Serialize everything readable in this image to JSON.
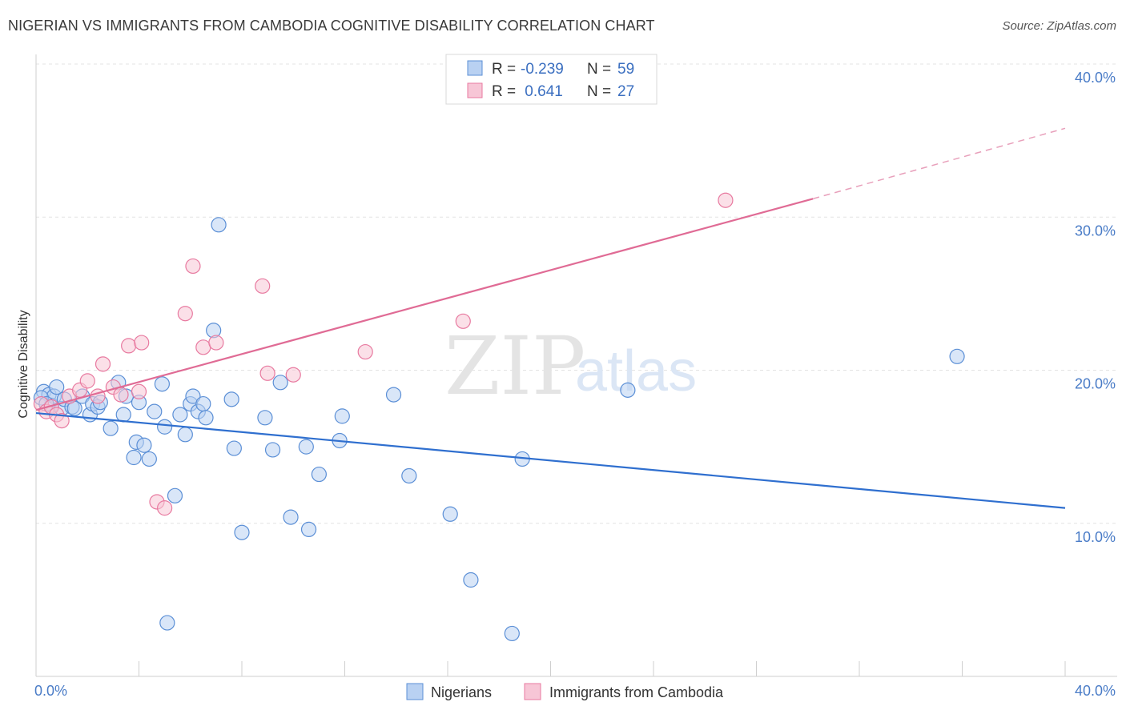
{
  "title": "NIGERIAN VS IMMIGRANTS FROM CAMBODIA COGNITIVE DISABILITY CORRELATION CHART",
  "source": "Source: ZipAtlas.com",
  "watermark": {
    "zip": "ZIP",
    "atlas": "atlas"
  },
  "colors": {
    "blue": "#5b8fd6",
    "blue_fill": "#b9d1f2",
    "blue_line": "#2f6fcf",
    "pink": "#e87aa0",
    "pink_fill": "#f7c6d6",
    "pink_line": "#e06b95"
  },
  "legend": {
    "rows": [
      {
        "r_label": "R =",
        "r_value": "-0.239",
        "n_label": "N =",
        "n_value": "59"
      },
      {
        "r_label": "R =",
        "r_value": " 0.641",
        "n_label": "N =",
        "n_value": "27"
      }
    ]
  },
  "bottom_legend": [
    "Nigerians",
    "Immigrants from Cambodia"
  ],
  "chart_data": {
    "type": "scatter",
    "title": "NIGERIAN VS IMMIGRANTS FROM CAMBODIA COGNITIVE DISABILITY CORRELATION CHART",
    "xlabel": "",
    "ylabel": "Cognitive Disability",
    "xlim": [
      0,
      40
    ],
    "ylim": [
      0,
      40
    ],
    "x_tick_labels": [
      "0.0%",
      "40.0%"
    ],
    "y_tick_labels": [
      "10.0%",
      "20.0%",
      "30.0%",
      "40.0%"
    ],
    "y_ticks": [
      10,
      20,
      30,
      40
    ],
    "grid": true,
    "legend_position": "top-center",
    "series": [
      {
        "name": "Nigerians",
        "r": -0.239,
        "n": 59,
        "trend": {
          "x0": 0,
          "y0": 17.2,
          "x1": 40,
          "y1": 11.0,
          "dashed_from": null
        },
        "points": [
          [
            0.3,
            18.6
          ],
          [
            0.5,
            18.4
          ],
          [
            0.6,
            17.7
          ],
          [
            0.7,
            18.3
          ],
          [
            0.8,
            18.9
          ],
          [
            1.0,
            17.5
          ],
          [
            1.1,
            18.1
          ],
          [
            1.4,
            17.6
          ],
          [
            1.5,
            17.5
          ],
          [
            1.8,
            18.3
          ],
          [
            2.1,
            17.1
          ],
          [
            2.2,
            17.8
          ],
          [
            2.4,
            17.6
          ],
          [
            2.5,
            17.9
          ],
          [
            2.9,
            16.2
          ],
          [
            3.2,
            19.2
          ],
          [
            3.4,
            17.1
          ],
          [
            3.5,
            18.3
          ],
          [
            3.8,
            14.3
          ],
          [
            3.9,
            15.3
          ],
          [
            4.0,
            17.9
          ],
          [
            4.2,
            15.1
          ],
          [
            4.4,
            14.2
          ],
          [
            4.6,
            17.3
          ],
          [
            4.9,
            19.1
          ],
          [
            5.0,
            16.3
          ],
          [
            5.1,
            3.5
          ],
          [
            5.4,
            11.8
          ],
          [
            5.6,
            17.1
          ],
          [
            5.8,
            15.8
          ],
          [
            6.0,
            17.8
          ],
          [
            6.1,
            18.3
          ],
          [
            6.3,
            17.3
          ],
          [
            6.5,
            17.8
          ],
          [
            6.6,
            16.9
          ],
          [
            6.9,
            22.6
          ],
          [
            7.1,
            29.5
          ],
          [
            7.6,
            18.1
          ],
          [
            7.7,
            14.9
          ],
          [
            8.0,
            9.4
          ],
          [
            8.9,
            16.9
          ],
          [
            9.2,
            14.8
          ],
          [
            9.5,
            19.2
          ],
          [
            9.9,
            10.4
          ],
          [
            10.5,
            15.0
          ],
          [
            10.6,
            9.6
          ],
          [
            11.0,
            13.2
          ],
          [
            11.8,
            15.4
          ],
          [
            11.9,
            17.0
          ],
          [
            13.9,
            18.4
          ],
          [
            14.5,
            13.1
          ],
          [
            16.1,
            10.6
          ],
          [
            16.9,
            6.3
          ],
          [
            18.5,
            2.8
          ],
          [
            18.9,
            14.2
          ],
          [
            23.0,
            18.7
          ],
          [
            35.8,
            20.9
          ],
          [
            0.2,
            18.2
          ],
          [
            0.4,
            17.8
          ]
        ]
      },
      {
        "name": "Immigrants from Cambodia",
        "r": 0.641,
        "n": 27,
        "trend": {
          "x0": 0,
          "y0": 17.4,
          "x1": 30.2,
          "y1": 31.2,
          "dashed_to_x": 40,
          "dashed_to_y": 35.8
        },
        "points": [
          [
            0.2,
            17.8
          ],
          [
            0.4,
            17.3
          ],
          [
            0.6,
            17.6
          ],
          [
            0.8,
            17.1
          ],
          [
            1.0,
            16.7
          ],
          [
            1.3,
            18.3
          ],
          [
            1.7,
            18.7
          ],
          [
            2.0,
            19.3
          ],
          [
            2.4,
            18.3
          ],
          [
            2.6,
            20.4
          ],
          [
            3.0,
            18.9
          ],
          [
            3.3,
            18.4
          ],
          [
            3.6,
            21.6
          ],
          [
            4.0,
            18.6
          ],
          [
            4.1,
            21.8
          ],
          [
            4.7,
            11.4
          ],
          [
            5.0,
            11.0
          ],
          [
            5.8,
            23.7
          ],
          [
            6.1,
            26.8
          ],
          [
            6.5,
            21.5
          ],
          [
            7.0,
            21.8
          ],
          [
            8.8,
            25.5
          ],
          [
            9.0,
            19.8
          ],
          [
            10.0,
            19.7
          ],
          [
            12.8,
            21.2
          ],
          [
            16.6,
            23.2
          ],
          [
            26.8,
            31.1
          ]
        ]
      }
    ]
  }
}
